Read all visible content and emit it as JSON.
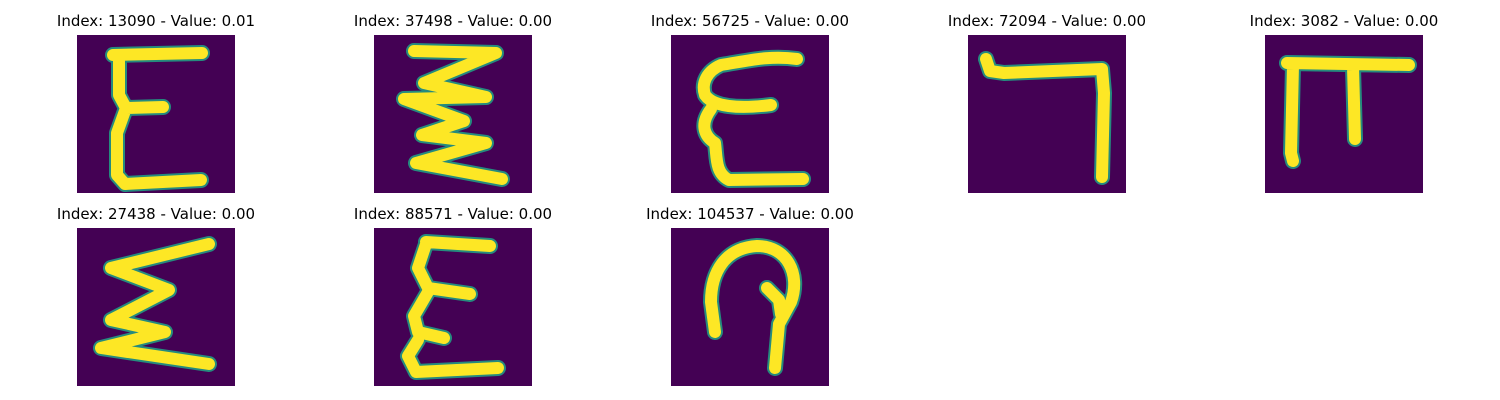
{
  "panels": [
    {
      "title": "Index: 13090 - Value: 0.01",
      "glyph": "epsilon-tall"
    },
    {
      "title": "Index: 37498 - Value: 0.00",
      "glyph": "zigzag"
    },
    {
      "title": "Index: 56725 - Value: 0.00",
      "glyph": "epsilon-rounded"
    },
    {
      "title": "Index: 72094 - Value: 0.00",
      "glyph": "hook-right"
    },
    {
      "title": "Index: 3082 - Value: 0.00",
      "glyph": "pi-like"
    },
    {
      "title": "Index: 27438 - Value: 0.00",
      "glyph": "sigma-like"
    },
    {
      "title": "Index: 88571 - Value: 0.00",
      "glyph": "epsilon-narrow"
    },
    {
      "title": "Index: 104537 - Value: 0.00",
      "glyph": "hook-loop"
    }
  ],
  "colors": {
    "background": "#440154",
    "foreground": "#fde725",
    "edge": "#20a386"
  }
}
